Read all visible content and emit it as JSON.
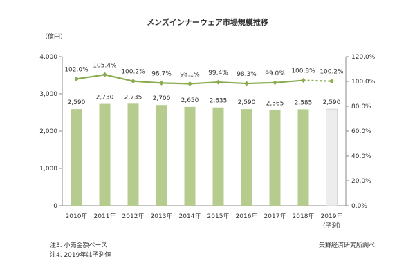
{
  "chart_data": {
    "type": "bar",
    "title": "メンズインナーウェア市場規模推移",
    "y_unit_label": "（億円）",
    "categories": [
      "2010年",
      "2011年",
      "2012年",
      "2013年",
      "2014年",
      "2015年",
      "2016年",
      "2017年",
      "2018年",
      "2019年"
    ],
    "forecast_note": "（予測）",
    "y_left": {
      "min": 0,
      "max": 4000,
      "ticks": [
        "0",
        "1,000",
        "2,000",
        "3,000",
        "4,000"
      ]
    },
    "y_right": {
      "min": 0,
      "max": 120,
      "ticks": [
        "0.0%",
        "20.0%",
        "40.0%",
        "60.0%",
        "80.0%",
        "100.0%",
        "120.0%"
      ]
    },
    "series": [
      {
        "kind": "bar",
        "values": [
          2590,
          2730,
          2735,
          2700,
          2650,
          2635,
          2590,
          2565,
          2585,
          2590
        ],
        "labels": [
          "2,590",
          "2,730",
          "2,735",
          "2,700",
          "2,650",
          "2,635",
          "2,590",
          "2,565",
          "2,585",
          "2,590"
        ],
        "color": "#b5cc8e",
        "forecast_color": "#ededed"
      },
      {
        "kind": "line",
        "axis": "right",
        "values": [
          102.0,
          105.4,
          100.2,
          98.7,
          98.1,
          99.4,
          98.3,
          99.0,
          100.8,
          100.2
        ],
        "labels": [
          "102.0%",
          "105.4%",
          "100.2%",
          "98.7%",
          "98.1%",
          "99.4%",
          "98.3%",
          "99.0%",
          "100.8%",
          "100.2%"
        ],
        "color": "#8aab4f",
        "forecast_dashed": true
      }
    ],
    "forecast_index": 9,
    "grid": false,
    "legend": "none"
  },
  "notes": {
    "note1": "注3. 小売金額ベース",
    "note2": "注4. 2019年は予測値",
    "source": "矢野経済研究所調べ"
  }
}
